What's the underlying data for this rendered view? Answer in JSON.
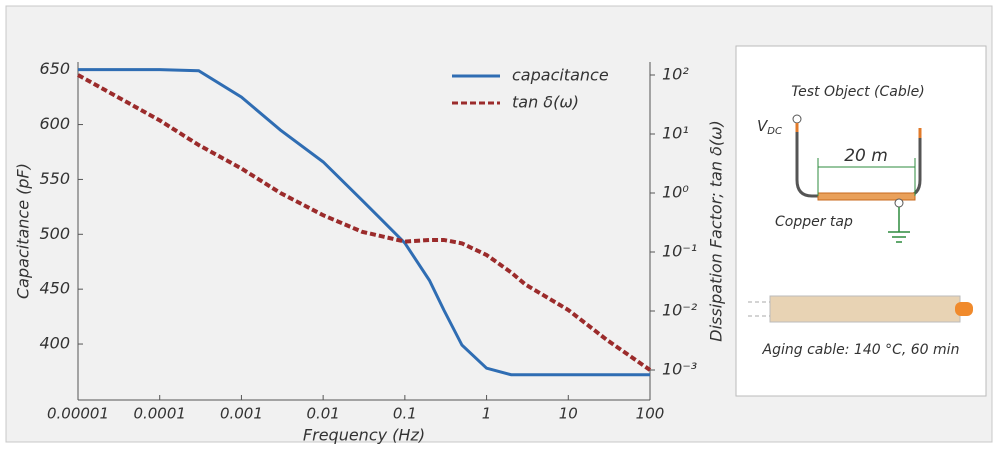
{
  "chart_data": {
    "type": "line",
    "x": [
      {
        "value": 1e-05,
        "label": "0.00001"
      },
      0.0001,
      0.0003,
      0.001,
      0.003,
      0.01,
      0.03,
      0.1,
      0.2,
      0.3,
      0.5,
      1,
      2,
      3,
      10,
      30,
      100
    ],
    "xscale": "log",
    "xlim": [
      1e-05,
      100
    ],
    "xticks": [
      {
        "value": 1e-05,
        "label": "0.00001"
      },
      0.0001,
      0.001,
      0.01,
      0.1,
      1,
      10,
      100
    ],
    "xlabel": "Frequency (Hz)",
    "ylabel": "Capacitance (pF)",
    "y2label": "Dissipation Factor; tan δ(ω)",
    "ylim": [
      349,
      657
    ],
    "yticks": [
      400,
      450,
      500,
      550,
      600,
      650
    ],
    "y2scale": "log",
    "y2lim": [
      0.00031,
      166
    ],
    "y2ticks": [
      {
        "value": 0.001,
        "label": "10⁻³"
      },
      {
        "value": 0.01,
        "label": "10⁻²"
      },
      {
        "value": 0.1,
        "label": "10⁻¹"
      },
      {
        "value": 1,
        "label": "10⁰"
      },
      {
        "value": 10,
        "label": "10¹"
      },
      {
        "value": 100,
        "label": "10²"
      }
    ],
    "grid": false,
    "legend": "upper right",
    "series": [
      {
        "name": "capacitance",
        "color": "#2f6db3",
        "line_style": "solid",
        "values": [
          650,
          650,
          649,
          625,
          595,
          566,
          531,
          492,
          458,
          431,
          399,
          378,
          372,
          372,
          372,
          372,
          372
        ]
      },
      {
        "name": "tan δ(ω)",
        "color": "#9b2b2b",
        "line_style": "dashed",
        "axis": "y2",
        "values": [
          100,
          17,
          6.5,
          2.6,
          1.0,
          0.42,
          0.22,
          0.15,
          0.16,
          0.16,
          0.14,
          0.089,
          0.045,
          0.028,
          0.0104,
          0.0032,
          0.001
        ]
      }
    ]
  },
  "diagram": {
    "title": "Test Object (Cable)",
    "vdc_main": "V",
    "vdc_sub": "DC",
    "length": "20 m",
    "tap": "Copper tap",
    "aging": "Aging cable: 140 °C, 60 min"
  }
}
